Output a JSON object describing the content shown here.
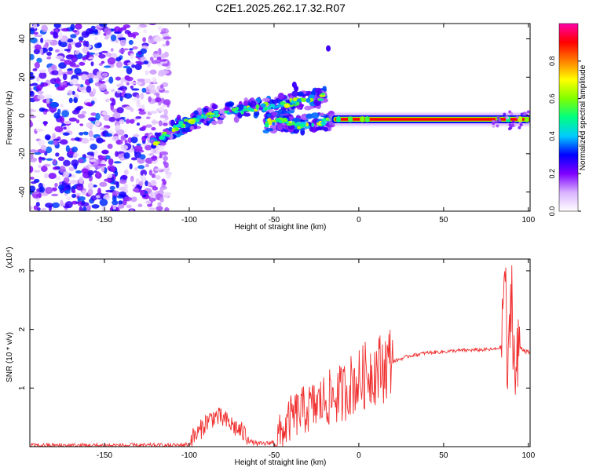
{
  "title": "C2E1.2025.262.17.32.R07",
  "chart_data": [
    {
      "type": "heatmap",
      "xlabel": "Height of straight line (km)",
      "ylabel": "Frequency (Hz)",
      "xlim": [
        -194,
        101
      ],
      "ylim": [
        -50,
        48
      ],
      "xticks": [
        -150,
        -100,
        -50,
        0,
        50,
        100
      ],
      "yticks": [
        -40,
        -20,
        0,
        20,
        40
      ],
      "colorbar": {
        "label": "Normalized spectral amplitude",
        "range": [
          0,
          1
        ],
        "ticks": [
          "0.0",
          "0.2",
          "0.4",
          "0.6",
          "0.8"
        ],
        "tick_values": [
          0.0,
          0.2,
          0.4,
          0.6,
          0.8
        ],
        "colormap": [
          "#ffffff",
          "#d9b3ff",
          "#7f00ff",
          "#0000ff",
          "#00ccff",
          "#00ff80",
          "#80ff00",
          "#ffff00",
          "#ff8000",
          "#ff0000",
          "#ff00aa"
        ]
      },
      "features": {
        "noise_region_km": [
          -194,
          -112
        ],
        "noise_freq_range_hz": [
          -50,
          48
        ],
        "central_line_km": [
          -15,
          101
        ],
        "central_line_freq_hz": -2,
        "upper_branch": {
          "x": [
            -122,
            -105,
            -90,
            -75,
            -60,
            -45,
            -30,
            -20
          ],
          "y": [
            -15,
            -5,
            0,
            2,
            4,
            6,
            8,
            10
          ]
        },
        "lower_branch": {
          "x": [
            -55,
            -45,
            -35,
            -25,
            -15
          ],
          "y": [
            -4,
            -3,
            -5,
            -4,
            -2
          ]
        },
        "outliers": [
          {
            "x": -38,
            "y": 16
          },
          {
            "x": -37,
            "y": 14
          },
          {
            "x": -18,
            "y": 35
          }
        ]
      }
    },
    {
      "type": "line",
      "xlabel": "Height of straight line (km)",
      "ylabel": "SNR (10 * v/v)",
      "y_multiplier": "(x10⁴)",
      "xlim": [
        -194,
        101
      ],
      "ylim": [
        0,
        3.2
      ],
      "xticks": [
        -150,
        -100,
        -50,
        0,
        50,
        100
      ],
      "yticks": [
        1,
        2,
        3
      ],
      "series": [
        {
          "name": "SNR",
          "color": "#f03030",
          "x": [
            -194,
            -150,
            -110,
            -100,
            -95,
            -90,
            -85,
            -80,
            -75,
            -70,
            -65,
            -60,
            -55,
            -50,
            -45,
            -40,
            -35,
            -30,
            -25,
            -20,
            -15,
            -10,
            -5,
            0,
            5,
            10,
            15,
            20,
            25,
            30,
            40,
            50,
            60,
            70,
            80,
            84,
            86,
            88,
            90,
            92,
            95,
            100
          ],
          "y": [
            0.02,
            0.02,
            0.02,
            0.04,
            0.15,
            0.35,
            0.45,
            0.4,
            0.3,
            0.2,
            0.1,
            0.05,
            0.05,
            0.08,
            0.2,
            0.45,
            0.55,
            0.6,
            0.65,
            0.75,
            0.8,
            0.85,
            1.0,
            1.05,
            1.2,
            1.25,
            1.3,
            1.45,
            1.5,
            1.55,
            1.6,
            1.62,
            1.64,
            1.65,
            1.66,
            1.7,
            3.15,
            0.9,
            2.9,
            1.1,
            1.7,
            1.6
          ]
        }
      ]
    }
  ]
}
